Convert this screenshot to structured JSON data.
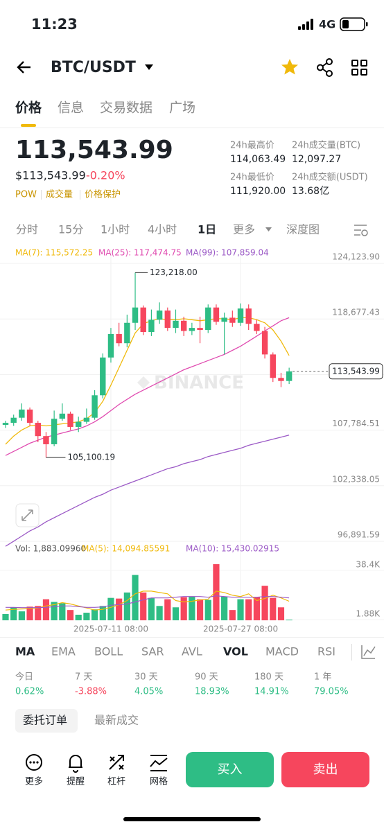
{
  "status_bar": {
    "time": "11:23",
    "network": "4G"
  },
  "header": {
    "pair": "BTC/USDT"
  },
  "tabs": [
    "价格",
    "信息",
    "交易数据",
    "广场"
  ],
  "price": {
    "last": "113,543.99",
    "usd": "$113,543.99",
    "change": "-0.20%",
    "tags": [
      "POW",
      "成交量",
      "价格保护"
    ]
  },
  "stats": [
    {
      "label": "24h最高价",
      "value": "114,063.49"
    },
    {
      "label": "24h成交量(BTC)",
      "value": "12,097.27"
    },
    {
      "label": "24h最低价",
      "value": "111,920.00"
    },
    {
      "label": "24h成交额(USDT)",
      "value": "13.68亿"
    }
  ],
  "intervals": [
    "分时",
    "15分",
    "1小时",
    "4小时",
    "1日",
    "更多",
    "深度图"
  ],
  "chart_data": {
    "type": "candlestick",
    "watermark": "BINANCE",
    "up_color": "#2ebd85",
    "down_color": "#f6465d",
    "categories": [
      null,
      null,
      null,
      null,
      null,
      null,
      null,
      null,
      null,
      null,
      null,
      null,
      null,
      "2025-07-11 08:00",
      null,
      null,
      null,
      null,
      null,
      null,
      null,
      null,
      null,
      null,
      null,
      null,
      null,
      null,
      null,
      "2025-07-27 08:00",
      null,
      null,
      null,
      null,
      null,
      null
    ],
    "ohlc": [
      [
        108300,
        108700,
        108000,
        108500
      ],
      [
        108500,
        109300,
        108200,
        109000
      ],
      [
        109000,
        110400,
        108700,
        109800
      ],
      [
        109800,
        110000,
        108200,
        108500
      ],
      [
        108500,
        108700,
        106600,
        107200
      ],
      [
        107200,
        107600,
        105100.19,
        106400
      ],
      [
        106400,
        109700,
        106200,
        108900
      ],
      [
        108900,
        110400,
        108700,
        109400
      ],
      [
        109400,
        109600,
        107800,
        108100
      ],
      [
        108100,
        109100,
        107600,
        108600
      ],
      [
        108600,
        109900,
        108400,
        109000
      ],
      [
        109000,
        111700,
        108800,
        111200
      ],
      [
        111200,
        115300,
        110900,
        114900
      ],
      [
        114900,
        117800,
        114400,
        117200
      ],
      [
        117200,
        118300,
        116000,
        116300
      ],
      [
        116300,
        119100,
        115900,
        118300
      ],
      [
        118300,
        123218,
        117600,
        119800
      ],
      [
        119800,
        120000,
        117100,
        117400
      ],
      [
        117400,
        119600,
        117000,
        118600
      ],
      [
        118600,
        120300,
        118200,
        119500
      ],
      [
        119500,
        119800,
        117500,
        117800
      ],
      [
        117800,
        119600,
        117300,
        118500
      ],
      [
        118500,
        118900,
        117000,
        117500
      ],
      [
        117500,
        118300,
        117100,
        117800
      ],
      [
        117800,
        118900,
        116300,
        117600
      ],
      [
        117600,
        120100,
        117300,
        119800
      ],
      [
        119800,
        120100,
        118100,
        118400
      ],
      [
        118400,
        119300,
        115200,
        118800
      ],
      [
        118800,
        119500,
        117900,
        118300
      ],
      [
        118300,
        120200,
        118000,
        119700
      ],
      [
        119700,
        120100,
        117600,
        118200
      ],
      [
        118200,
        118600,
        117200,
        117500
      ],
      [
        117500,
        117900,
        114800,
        115200
      ],
      [
        115200,
        115400,
        112500,
        112900
      ],
      [
        112900,
        113400,
        112000,
        112600
      ],
      [
        112600,
        113900,
        112300,
        113543.99
      ]
    ],
    "ylim": [
      96280,
      125482
    ],
    "yticks": [
      {
        "value": 124123.9,
        "label": "124,123.90"
      },
      {
        "value": 118677.43,
        "label": "118,677.43"
      },
      {
        "value": 113231
      },
      {
        "value": 107784.51,
        "label": "107,784.51"
      },
      {
        "value": 102338.05,
        "label": "102,338.05"
      },
      {
        "value": 96891.59,
        "label": "96,891.59"
      }
    ],
    "series": [
      {
        "name": "MA(7): 115,572.25",
        "color": "#f0b90b",
        "values": [
          106400,
          107200,
          107800,
          108200,
          108300,
          108200,
          108300,
          108400,
          108500,
          108600,
          108900,
          109500,
          110600,
          112200,
          113900,
          115600,
          117300,
          118200,
          118500,
          118700,
          118600,
          118600,
          118700,
          118600,
          118500,
          118600,
          118700,
          118700,
          118600,
          118800,
          118800,
          118600,
          118300,
          117600,
          116500,
          115100
        ]
      },
      {
        "name": "MA(25): 117,474.75",
        "color": "#e04bb0",
        "values": [
          105300,
          105700,
          106100,
          106500,
          106800,
          107100,
          107300,
          107500,
          107700,
          107900,
          108200,
          108600,
          109100,
          109700,
          110300,
          110800,
          111300,
          111700,
          112100,
          112500,
          112900,
          113300,
          113700,
          114000,
          114300,
          114600,
          114900,
          115200,
          115600,
          116000,
          116500,
          117000,
          117500,
          118000,
          118500,
          118800
        ]
      },
      {
        "name": "MA(99): 107,859.04",
        "color": "#9b59c6",
        "values": [
          96400,
          96900,
          97400,
          97900,
          98300,
          98800,
          99200,
          99600,
          100000,
          100400,
          100800,
          101200,
          101500,
          101900,
          102200,
          102500,
          102800,
          103100,
          103400,
          103700,
          104000,
          104200,
          104500,
          104700,
          104900,
          105200,
          105400,
          105600,
          105800,
          106000,
          106300,
          106500,
          106700,
          106900,
          107100,
          107300
        ]
      }
    ],
    "annotations": [
      {
        "value": 123218,
        "label": "123,218.00"
      },
      {
        "value": 105100.19,
        "label": "105,100.19"
      }
    ],
    "last_price": {
      "value": 113543.99,
      "label": "113,543.99"
    },
    "volume": {
      "name": "Vol: 1,883.09960",
      "ylim": [
        1366,
        50220
      ],
      "yticks": [
        {
          "value": 38400,
          "label": "38.4K"
        },
        {
          "value": 1880,
          "label": "1.88K"
        }
      ],
      "values": [
        6000,
        11000,
        8000,
        11500,
        12000,
        17000,
        15000,
        14000,
        9000,
        5500,
        7000,
        9500,
        12000,
        18000,
        17500,
        22000,
        35000,
        22000,
        18000,
        12000,
        17000,
        11000,
        18500,
        19000,
        17000,
        16500,
        43000,
        19000,
        9000,
        17000,
        17000,
        18500,
        27000,
        18000,
        11000,
        1883.0996
      ],
      "series": [
        {
          "name": "MA(5): 14,094.85591",
          "color": "#f0b90b",
          "values": [
            9000,
            9500,
            9800,
            10000,
            10500,
            12000,
            13000,
            14500,
            13500,
            12000,
            10500,
            9000,
            9500,
            11000,
            13000,
            16000,
            21000,
            23000,
            23000,
            22000,
            21000,
            16000,
            15000,
            15500,
            16500,
            17000,
            23000,
            22000,
            20000,
            19000,
            21000,
            16000,
            17500,
            20000,
            18000,
            15500
          ]
        },
        {
          "name": "MA(10): 15,430.02915",
          "color": "#9b59c6",
          "values": [
            11000,
            11000,
            10800,
            10800,
            10800,
            11000,
            11500,
            12000,
            12000,
            11500,
            11000,
            11000,
            11300,
            12500,
            13000,
            13500,
            15000,
            16500,
            18000,
            18000,
            18000,
            18500,
            19000,
            19000,
            19000,
            18500,
            19500,
            19000,
            18500,
            18500,
            18500,
            18500,
            19000,
            19000,
            18500,
            18000
          ]
        }
      ]
    }
  },
  "indicators": [
    "MA",
    "EMA",
    "BOLL",
    "SAR",
    "AVL",
    "VOL",
    "MACD",
    "RSI"
  ],
  "performance": [
    {
      "period": "今日",
      "change": "0.62%"
    },
    {
      "period": "7 天",
      "change": "-3.88%"
    },
    {
      "period": "30 天",
      "change": "4.05%"
    },
    {
      "period": "90 天",
      "change": "18.93%"
    },
    {
      "period": "180 天",
      "change": "14.91%"
    },
    {
      "period": "1 年",
      "change": "79.05%"
    }
  ],
  "order_tabs": [
    "委托订单",
    "最新成交"
  ],
  "actions": [
    "更多",
    "提醒",
    "杠杆",
    "网格"
  ],
  "buttons": [
    "买入",
    "卖出"
  ]
}
